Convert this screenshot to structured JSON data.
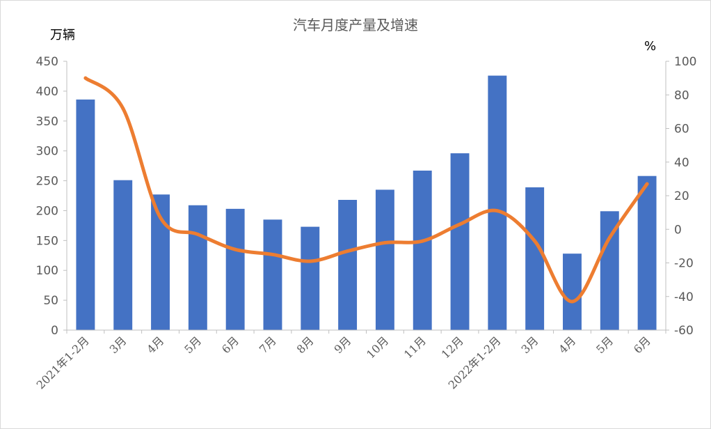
{
  "chart_data": {
    "type": "bar",
    "title": "汽车月度产量及增速",
    "y_left_unit": "万辆",
    "y_right_unit": "%",
    "categories": [
      "2021年1-2月",
      "3月",
      "4月",
      "5月",
      "6月",
      "7月",
      "8月",
      "9月",
      "10月",
      "11月",
      "12月",
      "2022年1-2月",
      "3月",
      "4月",
      "5月",
      "6月"
    ],
    "series": [
      {
        "type": "bar",
        "axis": "left",
        "color": "#4472C4",
        "values": [
          386,
          251,
          227,
          209,
          203,
          185,
          173,
          218,
          235,
          267,
          296,
          426,
          239,
          128,
          199,
          258
        ]
      },
      {
        "type": "line",
        "axis": "right",
        "color": "#ED7D31",
        "values": [
          90,
          72,
          7,
          -3,
          -12,
          -15,
          -19,
          -13,
          -8,
          -7,
          3,
          11,
          -7,
          -43,
          -5,
          27
        ]
      }
    ],
    "y_left": {
      "min": 0,
      "max": 450,
      "step": 50
    },
    "y_right": {
      "min": -60,
      "max": 100,
      "step": 20
    },
    "grid": false,
    "legend": "none"
  }
}
